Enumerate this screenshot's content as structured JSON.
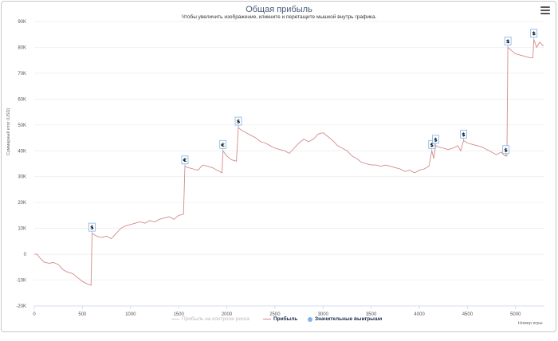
{
  "title": "Общая прибыль",
  "subtitle": "Чтобы увеличить изображение, кликните и перетащите мышкой внутрь графика.",
  "menu_icon": "hamburger-menu-icon",
  "legend": [
    {
      "label": "Прибыль на контроле риска",
      "color": "#bbbbbb",
      "style": "line",
      "faded": true
    },
    {
      "label": "Прибыль",
      "color": "#d28a8a",
      "style": "line",
      "faded": false
    },
    {
      "label": "Значительные выигрыши",
      "color": "#7cb5ec",
      "style": "dot",
      "faded": false
    }
  ],
  "chart_data": {
    "type": "line",
    "title": "Общая прибыль",
    "xlabel": "Номер игры",
    "ylabel": "Суммарный итог (USD)",
    "xlim": [
      0,
      5300
    ],
    "ylim": [
      -20000,
      90000
    ],
    "x_ticks": [
      0,
      500,
      1000,
      1500,
      2000,
      2500,
      3000,
      3500,
      4000,
      4500,
      5000
    ],
    "y_ticks": [
      -20000,
      -10000,
      0,
      10000,
      20000,
      30000,
      40000,
      50000,
      60000,
      70000,
      80000,
      90000
    ],
    "y_tick_labels": [
      "-20K",
      "-10K",
      "0",
      "10K",
      "20K",
      "30K",
      "40K",
      "50K",
      "60K",
      "70K",
      "80K",
      "90K"
    ],
    "grid": true,
    "series": [
      {
        "name": "Прибыль",
        "color": "#d28a8a",
        "points": [
          [
            0,
            0
          ],
          [
            30,
            0
          ],
          [
            60,
            -1500
          ],
          [
            100,
            -3000
          ],
          [
            150,
            -3500
          ],
          [
            200,
            -3200
          ],
          [
            250,
            -4000
          ],
          [
            300,
            -6000
          ],
          [
            350,
            -7000
          ],
          [
            400,
            -7500
          ],
          [
            450,
            -9000
          ],
          [
            500,
            -10500
          ],
          [
            550,
            -11500
          ],
          [
            590,
            -12000
          ],
          [
            600,
            8000
          ],
          [
            650,
            7000
          ],
          [
            700,
            6500
          ],
          [
            750,
            7000
          ],
          [
            800,
            6000
          ],
          [
            850,
            8000
          ],
          [
            900,
            10000
          ],
          [
            950,
            11000
          ],
          [
            1000,
            11500
          ],
          [
            1050,
            12000
          ],
          [
            1100,
            12500
          ],
          [
            1150,
            12000
          ],
          [
            1200,
            13000
          ],
          [
            1250,
            12500
          ],
          [
            1300,
            13500
          ],
          [
            1350,
            14000
          ],
          [
            1400,
            14500
          ],
          [
            1450,
            13500
          ],
          [
            1500,
            15000
          ],
          [
            1550,
            15500
          ],
          [
            1565,
            34000
          ],
          [
            1600,
            33500
          ],
          [
            1650,
            33000
          ],
          [
            1700,
            32500
          ],
          [
            1750,
            34500
          ],
          [
            1800,
            34000
          ],
          [
            1850,
            33500
          ],
          [
            1900,
            32500
          ],
          [
            1950,
            31500
          ],
          [
            1960,
            40000
          ],
          [
            2000,
            38000
          ],
          [
            2050,
            36500
          ],
          [
            2100,
            36000
          ],
          [
            2120,
            49000
          ],
          [
            2150,
            48000
          ],
          [
            2200,
            47000
          ],
          [
            2250,
            46000
          ],
          [
            2300,
            45000
          ],
          [
            2350,
            43500
          ],
          [
            2400,
            43000
          ],
          [
            2450,
            42000
          ],
          [
            2500,
            41000
          ],
          [
            2550,
            40500
          ],
          [
            2600,
            40000
          ],
          [
            2650,
            39000
          ],
          [
            2700,
            41000
          ],
          [
            2750,
            43000
          ],
          [
            2800,
            44500
          ],
          [
            2850,
            43500
          ],
          [
            2900,
            44500
          ],
          [
            2950,
            46500
          ],
          [
            3000,
            47000
          ],
          [
            3050,
            45500
          ],
          [
            3100,
            44000
          ],
          [
            3150,
            42000
          ],
          [
            3200,
            41000
          ],
          [
            3250,
            40000
          ],
          [
            3300,
            38000
          ],
          [
            3350,
            37000
          ],
          [
            3400,
            35500
          ],
          [
            3450,
            35000
          ],
          [
            3500,
            34500
          ],
          [
            3550,
            34500
          ],
          [
            3600,
            34000
          ],
          [
            3650,
            34500
          ],
          [
            3700,
            34000
          ],
          [
            3750,
            33500
          ],
          [
            3800,
            33000
          ],
          [
            3850,
            32000
          ],
          [
            3900,
            32500
          ],
          [
            3950,
            31500
          ],
          [
            3980,
            32000
          ],
          [
            4000,
            32500
          ],
          [
            4050,
            33000
          ],
          [
            4100,
            34000
          ],
          [
            4130,
            40000
          ],
          [
            4150,
            37000
          ],
          [
            4170,
            42000
          ],
          [
            4200,
            41500
          ],
          [
            4250,
            41000
          ],
          [
            4300,
            40500
          ],
          [
            4350,
            41000
          ],
          [
            4400,
            42000
          ],
          [
            4430,
            40000
          ],
          [
            4460,
            44000
          ],
          [
            4500,
            43000
          ],
          [
            4550,
            42500
          ],
          [
            4600,
            42000
          ],
          [
            4650,
            41500
          ],
          [
            4700,
            40500
          ],
          [
            4750,
            39500
          ],
          [
            4800,
            38500
          ],
          [
            4850,
            39500
          ],
          [
            4890,
            38000
          ],
          [
            4910,
            38000
          ],
          [
            4920,
            80000
          ],
          [
            4950,
            79000
          ],
          [
            5000,
            77500
          ],
          [
            5050,
            77000
          ],
          [
            5100,
            76500
          ],
          [
            5150,
            76000
          ],
          [
            5180,
            76000
          ],
          [
            5190,
            83000
          ],
          [
            5220,
            80000
          ],
          [
            5250,
            82000
          ],
          [
            5290,
            80500
          ]
        ]
      }
    ],
    "big_wins": [
      {
        "x": 600,
        "y": 8000,
        "label": "$"
      },
      {
        "x": 1565,
        "y": 34000,
        "label": "€"
      },
      {
        "x": 1960,
        "y": 40000,
        "label": "€"
      },
      {
        "x": 2120,
        "y": 49000,
        "label": "$"
      },
      {
        "x": 4130,
        "y": 40000,
        "label": "$"
      },
      {
        "x": 4170,
        "y": 42000,
        "label": "$"
      },
      {
        "x": 4460,
        "y": 44000,
        "label": "$"
      },
      {
        "x": 4920,
        "y": 80000,
        "label": "$"
      },
      {
        "x": 4900,
        "y": 38000,
        "label": "$"
      },
      {
        "x": 5190,
        "y": 83000,
        "label": "$"
      }
    ]
  }
}
